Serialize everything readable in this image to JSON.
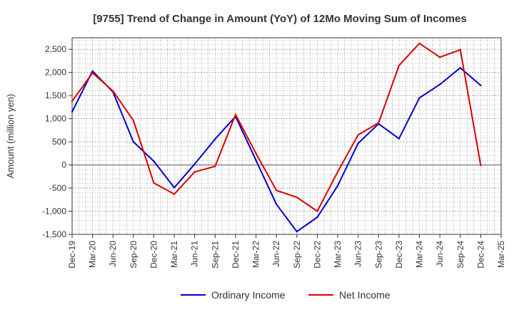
{
  "chart_data": {
    "type": "line",
    "title": "[9755]  Trend of Change in Amount (YoY) of 12Mo Moving Sum of Incomes",
    "ylabel": "Amount (million yen)",
    "xlabel": "",
    "ylim": [
      -1500,
      2750
    ],
    "yticks": [
      -1500,
      -1000,
      -500,
      0,
      500,
      1000,
      1500,
      2000,
      2500
    ],
    "ytick_labels": [
      "-1,500",
      "-1,000",
      "-500",
      "0",
      "500",
      "1,000",
      "1,500",
      "2,000",
      "2,500"
    ],
    "categories": [
      "Dec-19",
      "Mar-20",
      "Jun-20",
      "Sep-20",
      "Dec-20",
      "Mar-21",
      "Jun-21",
      "Sep-21",
      "Dec-21",
      "Mar-22",
      "Jun-22",
      "Sep-22",
      "Dec-22",
      "Mar-23",
      "Jun-23",
      "Sep-23",
      "Dec-23",
      "Mar-24",
      "Jun-24",
      "Sep-24",
      "Dec-24",
      "Mar-25"
    ],
    "grid": true,
    "legend_position": "bottom",
    "series": [
      {
        "name": "Ordinary Income",
        "color": "#0000cc",
        "values": [
          1150,
          2030,
          1580,
          500,
          80,
          -490,
          20,
          560,
          1050,
          100,
          -850,
          -1440,
          -1130,
          -450,
          470,
          890,
          570,
          1450,
          1740,
          2100,
          1720,
          null
        ]
      },
      {
        "name": "Net Income",
        "color": "#dd0000",
        "values": [
          1380,
          1990,
          1600,
          960,
          -390,
          -630,
          -150,
          -30,
          1090,
          250,
          -550,
          -700,
          -1000,
          -150,
          650,
          910,
          2150,
          2630,
          2330,
          2490,
          -10,
          null
        ]
      }
    ]
  }
}
